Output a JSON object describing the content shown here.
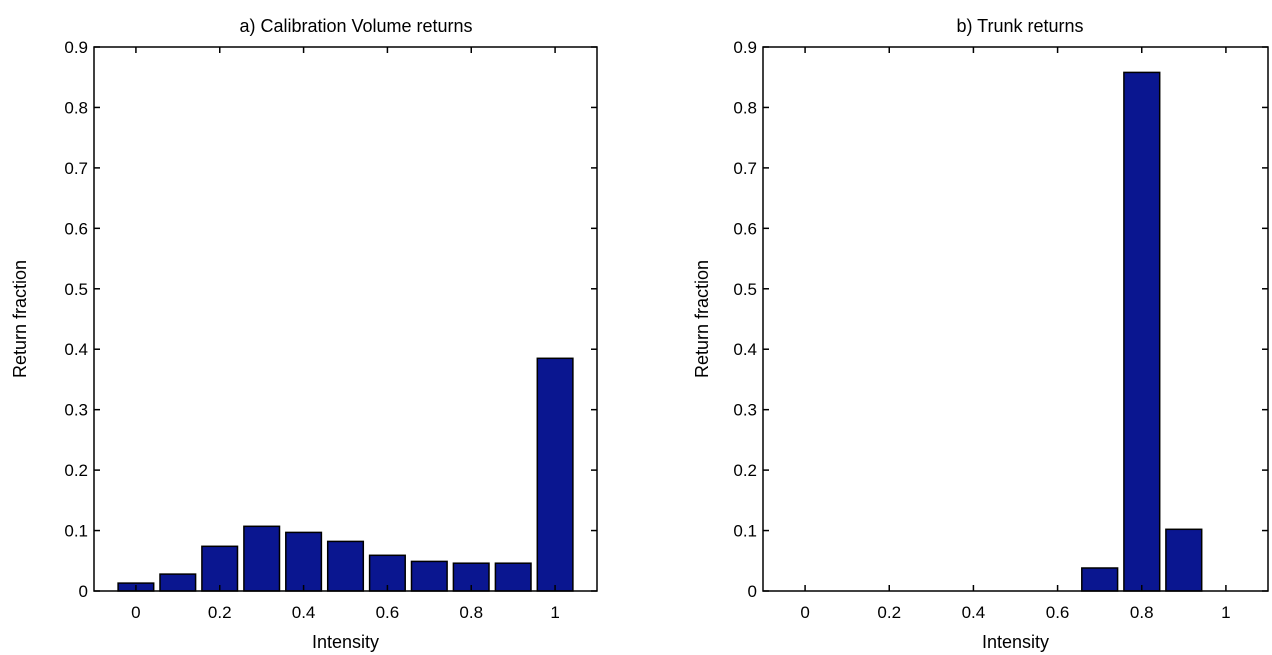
{
  "chart_data": [
    {
      "type": "bar",
      "title": "a) Calibration Volume returns",
      "xlabel": "Intensity",
      "ylabel": "Return fraction",
      "xlim": [
        -0.1,
        1.1
      ],
      "ylim": [
        0,
        0.9
      ],
      "xticks": [
        0,
        0.2,
        0.4,
        0.6,
        0.8,
        1
      ],
      "xtick_labels": [
        "0",
        "0.2",
        "0.4",
        "0.6",
        "0.8",
        "1"
      ],
      "yticks": [
        0,
        0.1,
        0.2,
        0.3,
        0.4,
        0.5,
        0.6,
        0.7,
        0.8,
        0.9
      ],
      "ytick_labels": [
        "0",
        "0.1",
        "0.2",
        "0.3",
        "0.4",
        "0.5",
        "0.6",
        "0.7",
        "0.8",
        "0.9"
      ],
      "x": [
        0,
        0.1,
        0.2,
        0.3,
        0.4,
        0.5,
        0.6,
        0.7,
        0.8,
        0.9,
        1.0
      ],
      "values": [
        0.013,
        0.028,
        0.074,
        0.107,
        0.097,
        0.082,
        0.059,
        0.049,
        0.046,
        0.046,
        0.385
      ],
      "bar_width": 0.085,
      "bar_color": "#0a1690",
      "grid": false
    },
    {
      "type": "bar",
      "title": "b) Trunk returns",
      "xlabel": "Intensity",
      "ylabel": "Return fraction",
      "xlim": [
        -0.1,
        1.1
      ],
      "ylim": [
        0,
        0.9
      ],
      "xticks": [
        0,
        0.2,
        0.4,
        0.6,
        0.8,
        1
      ],
      "xtick_labels": [
        "0",
        "0.2",
        "0.4",
        "0.6",
        "0.8",
        "1"
      ],
      "yticks": [
        0,
        0.1,
        0.2,
        0.3,
        0.4,
        0.5,
        0.6,
        0.7,
        0.8,
        0.9
      ],
      "ytick_labels": [
        "0",
        "0.1",
        "0.2",
        "0.3",
        "0.4",
        "0.5",
        "0.6",
        "0.7",
        "0.8",
        "0.9"
      ],
      "x": [
        0.7,
        0.8,
        0.9
      ],
      "values": [
        0.038,
        0.858,
        0.102
      ],
      "bar_width": 0.085,
      "bar_color": "#0a1690",
      "grid": false
    }
  ]
}
